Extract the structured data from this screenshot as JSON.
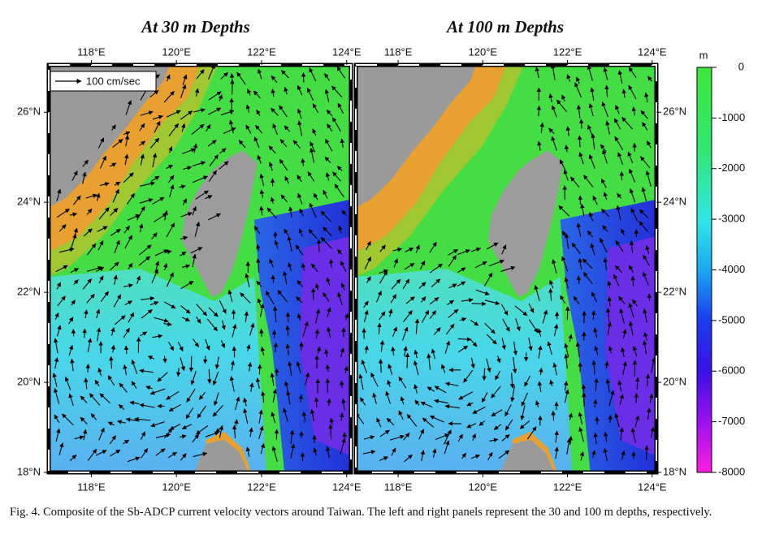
{
  "panels": [
    {
      "title": "At 30 m Depths"
    },
    {
      "title": "At 100 m Depths"
    }
  ],
  "map": {
    "lonlim": [
      117,
      124.1
    ],
    "latlim": [
      18,
      27.05
    ],
    "lon_ticks": [
      {
        "value": 118,
        "label": "118°E"
      },
      {
        "value": 120,
        "label": "120°E"
      },
      {
        "value": 122,
        "label": "122°E"
      },
      {
        "value": 124,
        "label": "124°E"
      }
    ],
    "lat_ticks": [
      {
        "value": 26,
        "label": "26°N"
      },
      {
        "value": 24,
        "label": "24°N"
      },
      {
        "value": 22,
        "label": "22°N"
      },
      {
        "value": 20,
        "label": "20°N"
      },
      {
        "value": 18,
        "label": "18°N"
      }
    ],
    "scale_label": "100 cm/sec"
  },
  "colorbar": {
    "unit": "m",
    "lim": [
      0,
      -8000
    ],
    "ticks": [
      0,
      -1000,
      -2000,
      -3000,
      -4000,
      -5000,
      -6000,
      -7000,
      -8000
    ]
  },
  "caption": "Fig. 4. Composite of the Sb-ADCP current velocity vectors around Taiwan. The left and right panels represent the 30 and 100 m depths, respectively."
}
